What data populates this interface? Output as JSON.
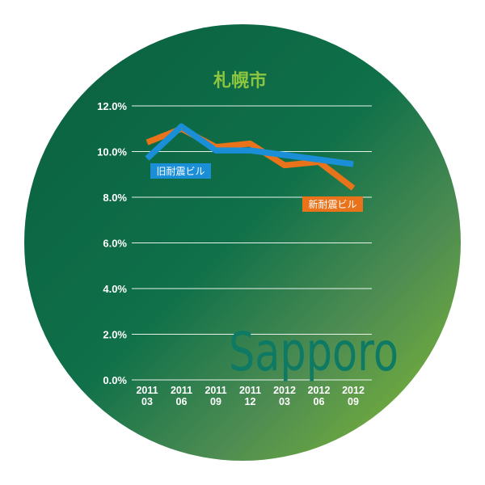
{
  "chart_data": {
    "type": "line",
    "title": "札幌市",
    "watermark": "Sapporo",
    "categories": [
      [
        "2011",
        "03"
      ],
      [
        "2011",
        "06"
      ],
      [
        "2011",
        "09"
      ],
      [
        "2011",
        "12"
      ],
      [
        "2012",
        "03"
      ],
      [
        "2012",
        "06"
      ],
      [
        "2012",
        "09"
      ]
    ],
    "y_ticks": [
      "0.0%",
      "2.0%",
      "4.0%",
      "6.0%",
      "8.0%",
      "10.0%",
      "12.0%"
    ],
    "ylim": [
      0,
      12
    ],
    "grid": true,
    "series": [
      {
        "name": "新耐震ビル",
        "color": "#e8731a",
        "values": [
          10.4,
          11.0,
          10.2,
          10.35,
          9.4,
          9.55,
          8.4
        ]
      },
      {
        "name": "旧耐震ビル",
        "color": "#1a8fd8",
        "values": [
          9.7,
          11.1,
          10.05,
          10.05,
          9.85,
          9.65,
          9.45
        ]
      }
    ],
    "colors": {
      "title": "#8cc63f",
      "gradient_start": "#0b6b47",
      "gradient_end": "#7ab538",
      "grid": "#ffffff"
    }
  }
}
